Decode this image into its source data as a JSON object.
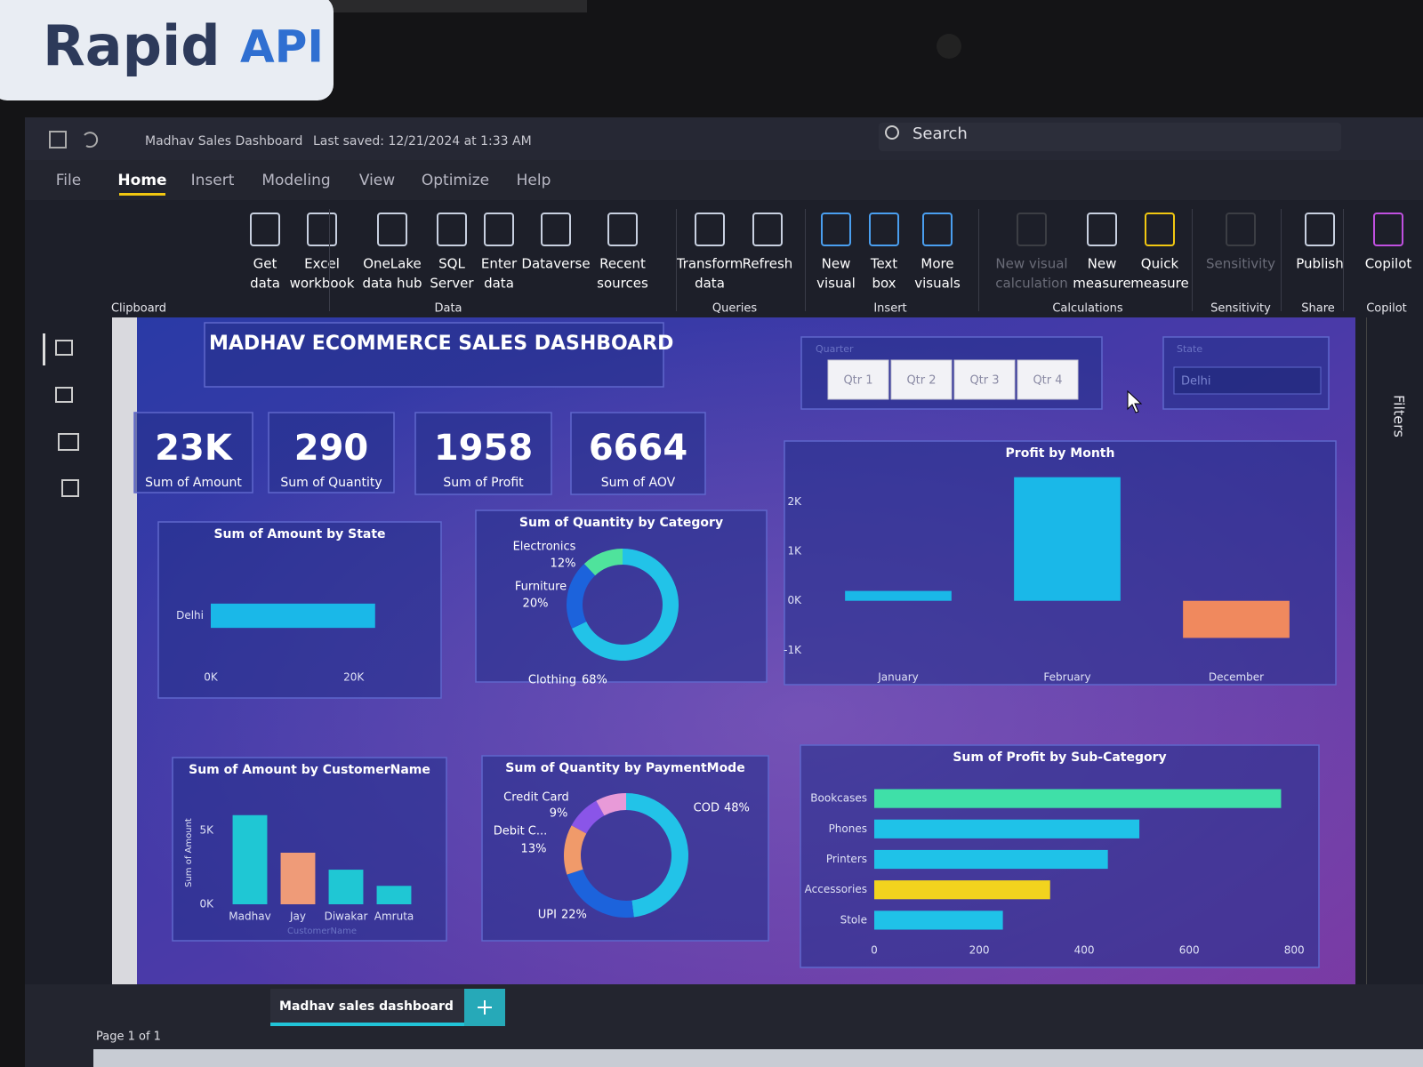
{
  "sticker": {
    "brand": "Rapid",
    "suffix": "API"
  },
  "title_bar": {
    "file_name": "Madhav Sales Dashboard",
    "saved": "Last saved: 12/21/2024 at 1:33 AM",
    "search": "Search"
  },
  "menu": [
    "File",
    "Home",
    "Insert",
    "Modeling",
    "View",
    "Optimize",
    "Help"
  ],
  "ribbon": {
    "buttons": [
      {
        "lines": [
          "Get",
          "data"
        ]
      },
      {
        "lines": [
          "Excel",
          "workbook"
        ]
      },
      {
        "lines": [
          "OneLake",
          "data hub"
        ]
      },
      {
        "lines": [
          "SQL",
          "Server"
        ]
      },
      {
        "lines": [
          "Enter",
          "data"
        ]
      },
      {
        "lines": [
          "Dataverse"
        ]
      },
      {
        "lines": [
          "Recent",
          "sources"
        ]
      },
      {
        "lines": [
          "Transform",
          "data"
        ]
      },
      {
        "lines": [
          "Refresh"
        ]
      },
      {
        "lines": [
          "New",
          "visual"
        ]
      },
      {
        "lines": [
          "Text",
          "box"
        ]
      },
      {
        "lines": [
          "More",
          "visuals"
        ]
      },
      {
        "lines": [
          "New visual",
          "calculation"
        ]
      },
      {
        "lines": [
          "New",
          "measure"
        ]
      },
      {
        "lines": [
          "Quick",
          "measure"
        ]
      },
      {
        "lines": [
          "Sensitivity"
        ]
      },
      {
        "lines": [
          "Publish"
        ]
      },
      {
        "lines": [
          "Copilot"
        ]
      }
    ],
    "groups": [
      "Clipboard",
      "Data",
      "Queries",
      "Insert",
      "Calculations",
      "Sensitivity",
      "Share",
      "Copilot"
    ]
  },
  "dashboard": {
    "title": "MADHAV ECOMMERCE SALES DASHBOARD",
    "quarter_slicer": {
      "title": "Quarter",
      "options": [
        "Qtr 1",
        "Qtr 2",
        "Qtr 3",
        "Qtr 4"
      ]
    },
    "state_slicer": {
      "title": "State",
      "selected": "Delhi"
    },
    "kpis": [
      {
        "value": {
          "value": 23000,
          "label": "23K"
        },
        "label": "Sum of Amount"
      },
      {
        "value": 290,
        "label": "Sum of Quantity"
      },
      {
        "value": 1958,
        "label": "Sum of Profit"
      },
      {
        "value": 6664,
        "label": "Sum of AOV"
      }
    ],
    "charts": [
      {
        "type": "bar",
        "horizontal": true,
        "title": "Sum of Amount by State",
        "categories": [
          "Delhi"
        ],
        "values": [
          23000
        ],
        "colors": [
          "#1ab8e8"
        ],
        "xlim": [
          0,
          30000
        ],
        "xticks": [
          {
            "value": 0,
            "label": "0K"
          },
          {
            "value": 20000,
            "label": "20K"
          }
        ],
        "grid": false
      },
      {
        "type": "donut",
        "title": "Sum of Quantity by Category",
        "categories": [
          "Clothing",
          "Furniture",
          "Electronics"
        ],
        "values": [
          68,
          20,
          12
        ],
        "value_labels": [
          "68%",
          "20%",
          "12%"
        ],
        "colors": [
          "#22c3e8",
          "#1c63dc",
          "#4fe39c"
        ]
      },
      {
        "type": "bar",
        "title": "Profit by Month",
        "categories": [
          "January",
          "February",
          "December"
        ],
        "values": [
          200,
          2500,
          -750
        ],
        "colors": [
          "#1ab8e8",
          "#1ab8e8",
          "#f0895e"
        ],
        "ylim": [
          -1300,
          2800
        ],
        "yticks": [
          {
            "value": -1000,
            "label": "-1K"
          },
          {
            "value": 0,
            "label": "0K"
          },
          {
            "value": 1000,
            "label": "1K"
          },
          {
            "value": 2000,
            "label": "2K"
          }
        ],
        "grid": false
      },
      {
        "type": "bar",
        "title": "Sum of Amount by CustomerName",
        "y_label": "Sum of Amount",
        "x_label": "CustomerName",
        "categories": [
          "Madhav",
          "Jay",
          "Diwakar",
          "Amruta"
        ],
        "values": [
          6050,
          3500,
          2350,
          1250
        ],
        "colors": [
          "#1fc7d4",
          "#ef9b78",
          "#1fc7d4",
          "#1fc7d4"
        ],
        "ylim": [
          0,
          7000
        ],
        "yticks": [
          {
            "value": 0,
            "label": "0K"
          },
          {
            "value": 5000,
            "label": "5K"
          }
        ],
        "grid": false
      },
      {
        "type": "donut",
        "title": "Sum of Quantity by PaymentMode",
        "categories": [
          "COD",
          "UPI",
          "Debit C...",
          "Credit Card",
          null
        ],
        "values": [
          48,
          22,
          13,
          9,
          8
        ],
        "value_labels": [
          "48%",
          "22%",
          "13%",
          "9%",
          null
        ],
        "colors": [
          "#22c3e8",
          "#1c63dc",
          "#f09a6a",
          "#8a55e8",
          "#e89ad8"
        ]
      },
      {
        "type": "bar",
        "horizontal": true,
        "title": "Sum of Profit by Sub-Category",
        "categories": [
          "Bookcases",
          "Phones",
          "Printers",
          "Accessories",
          "Stole"
        ],
        "values": [
          775,
          505,
          445,
          335,
          245
        ],
        "colors": [
          "#3fe0a8",
          "#1fc2e8",
          "#1fc2e8",
          "#f2d31e",
          "#1fc2e8"
        ],
        "xlim": [
          0,
          820
        ],
        "xticks": [
          0,
          200,
          400,
          600,
          800
        ],
        "grid": false
      }
    ],
    "page_tab": "Madhav sales dashboard",
    "status": "Page 1 of 1",
    "filters_pane": "Filters"
  }
}
